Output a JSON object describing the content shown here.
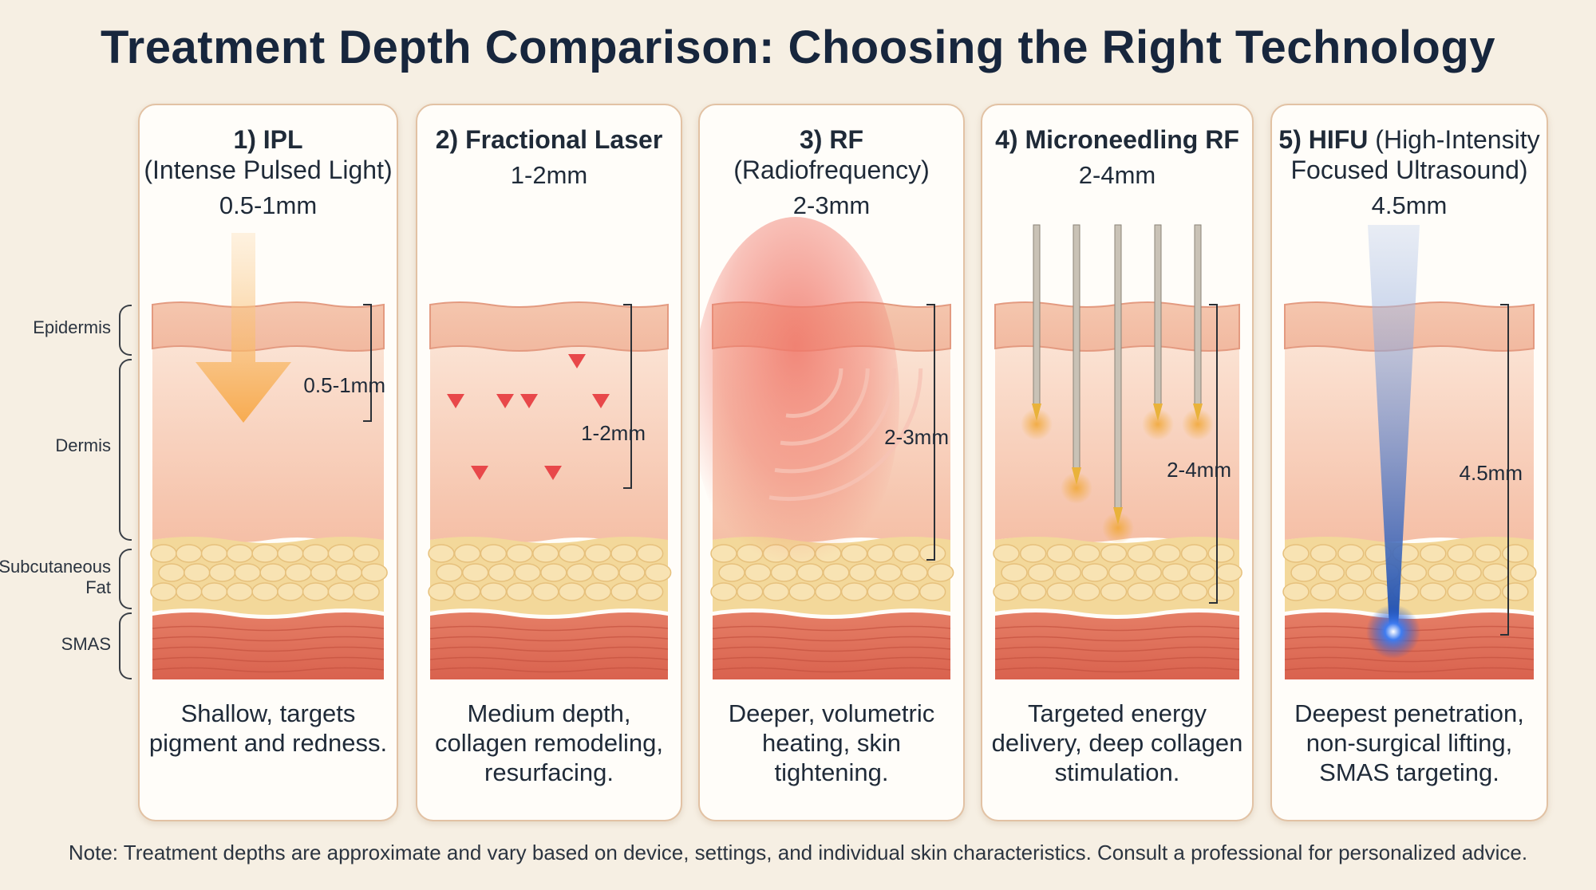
{
  "title": "Treatment Depth Comparison: Choosing the Right Technology",
  "layers": [
    {
      "id": "epidermis",
      "label": "Epidermis"
    },
    {
      "id": "dermis",
      "label": "Dermis"
    },
    {
      "id": "fat",
      "label": "Subcutaneous\nFat"
    },
    {
      "id": "smas",
      "label": "SMAS"
    }
  ],
  "panels": [
    {
      "number": "1)",
      "name": "IPL",
      "subtitle": "(Intense Pulsed Light)",
      "depth": "0.5-1mm",
      "depth_mm": 0.75,
      "beam": "orange-arrow",
      "description": "Shallow, targets pigment and redness."
    },
    {
      "number": "2)",
      "name": "Fractional Laser",
      "subtitle": "",
      "depth": "1-2mm",
      "depth_mm": 1.5,
      "beam": "red-laser-arrows",
      "description": "Medium depth, collagen remodeling, resurfacing."
    },
    {
      "number": "3)",
      "name": "RF",
      "subtitle": "(Radiofrequency)",
      "depth": "2-3mm",
      "depth_mm": 2.5,
      "beam": "rf-heat-field",
      "description": "Deeper, volumetric heating, skin tightening."
    },
    {
      "number": "4)",
      "name": "Microneedling RF",
      "subtitle": "",
      "depth": "2-4mm",
      "depth_mm": 3,
      "beam": "needles",
      "description": "Targeted energy delivery, deep collagen stimulation."
    },
    {
      "number": "5)",
      "name": "HIFU",
      "name_suffix": "(High-Intensity",
      "subtitle": "Focused Ultrasound)",
      "depth": "4.5mm",
      "depth_mm": 4.5,
      "beam": "ultrasound-cone",
      "description": "Deepest penetration, non-surgical lifting, SMAS targeting."
    }
  ],
  "colors": {
    "background": "#f6efe3",
    "epidermis": "#f2b9a0",
    "dermis": "#f7d3bf",
    "fat": "#f3d89a",
    "smas": "#d9624e",
    "ipl": "#f7a94a",
    "laser": "#e8484a",
    "rf": "#f0786a",
    "needle_glow": "#f1a93a",
    "hifu": "#1e4fb0"
  },
  "note": "Note: Treatment depths are approximate and vary based on device, settings, and individual skin characteristics. Consult a professional for personalized advice."
}
